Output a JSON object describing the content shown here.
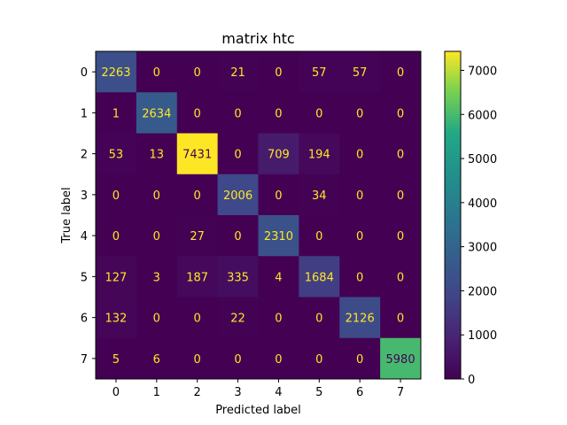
{
  "chart_data": {
    "type": "heatmap",
    "title": "matrix htc",
    "xlabel": "Predicted label",
    "ylabel": "True label",
    "x_categories": [
      "0",
      "1",
      "2",
      "3",
      "4",
      "5",
      "6",
      "7"
    ],
    "y_categories": [
      "0",
      "1",
      "2",
      "3",
      "4",
      "5",
      "6",
      "7"
    ],
    "values": [
      [
        2263,
        0,
        0,
        21,
        0,
        57,
        57,
        0
      ],
      [
        1,
        2634,
        0,
        0,
        0,
        0,
        0,
        0
      ],
      [
        53,
        13,
        7431,
        0,
        709,
        194,
        0,
        0
      ],
      [
        0,
        0,
        0,
        2006,
        0,
        34,
        0,
        0
      ],
      [
        0,
        0,
        27,
        0,
        2310,
        0,
        0,
        0
      ],
      [
        127,
        3,
        187,
        335,
        4,
        1684,
        0,
        0
      ],
      [
        132,
        0,
        0,
        22,
        0,
        0,
        2126,
        0
      ],
      [
        5,
        6,
        0,
        0,
        0,
        0,
        0,
        5980
      ]
    ],
    "colormap": "viridis",
    "colorbar": {
      "range": [
        0,
        7431
      ],
      "ticks": [
        0,
        1000,
        2000,
        3000,
        4000,
        5000,
        6000,
        7000
      ]
    },
    "label_color_low": "#fde725",
    "label_color_high": "#440154"
  }
}
